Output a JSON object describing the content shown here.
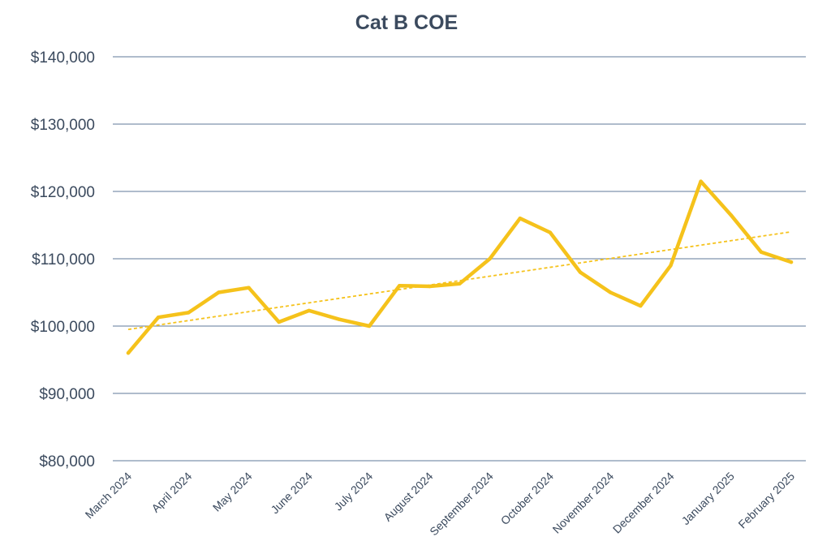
{
  "chart_data": {
    "type": "line",
    "title": "Cat B COE",
    "xlabel": "",
    "ylabel": "",
    "ylim": [
      80000,
      140000
    ],
    "yticks": [
      80000,
      90000,
      100000,
      110000,
      120000,
      130000,
      140000
    ],
    "ytick_labels": [
      "$80,000",
      "$90,000",
      "$100,000",
      "$110,000",
      "$120,000",
      "$130,000",
      "$140,000"
    ],
    "categories": [
      "March 2024",
      "April 2024",
      "May 2024",
      "June 2024",
      "July 2024",
      "August 2024",
      "September 2024",
      "October 2024",
      "November 2024",
      "December 2024",
      "January 2025",
      "February 2025"
    ],
    "x": [
      "March 2024 (1st)",
      "March 2024 (2nd)",
      "April 2024 (1st)",
      "April 2024 (2nd)",
      "May 2024 (1st)",
      "May 2024 (2nd)",
      "June 2024 (1st)",
      "June 2024 (2nd)",
      "July 2024 (1st)",
      "July 2024 (2nd)",
      "August 2024 (1st)",
      "August 2024 (2nd)",
      "September 2024 (1st)",
      "September 2024 (2nd)",
      "October 2024 (1st)",
      "October 2024 (2nd)",
      "November 2024 (1st)",
      "November 2024 (2nd)",
      "December 2024 (1st)",
      "December 2024 (2nd)",
      "January 2025 (1st)",
      "January 2025 (2nd)",
      "February 2025 (1st)"
    ],
    "series": [
      {
        "values": [
          96000,
          101300,
          102000,
          105000,
          105700,
          100600,
          102300,
          101000,
          100000,
          106000,
          105900,
          106300,
          110000,
          116000,
          113900,
          108000,
          105000,
          103000,
          109000,
          121500,
          116500,
          111000,
          109500
        ],
        "color": "#f5c21b"
      }
    ],
    "trendline": {
      "type": "linear",
      "start": 99500,
      "end": 114000,
      "color": "#f5c21b",
      "style": "dashed"
    },
    "grid": true,
    "legend": "none"
  }
}
